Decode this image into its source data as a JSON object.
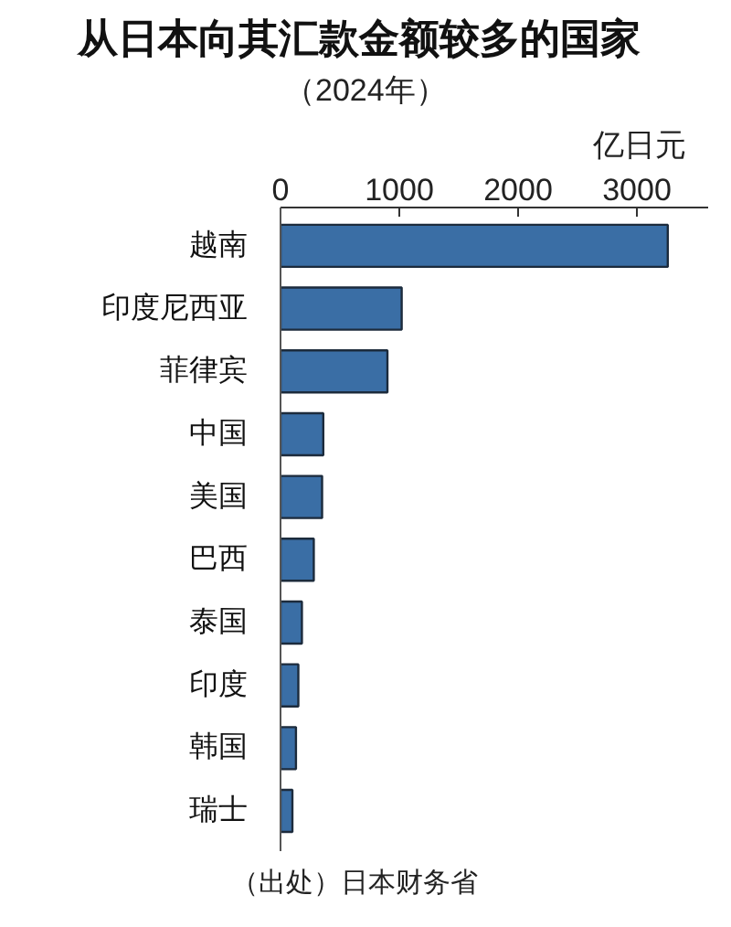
{
  "chart_data": {
    "type": "bar",
    "orientation": "horizontal",
    "title": "从日本向其汇款金额较多的国家",
    "subtitle": "（2024年）",
    "xlabel": "亿日元",
    "categories": [
      "越南",
      "印度尼西亚",
      "菲律宾",
      "中国",
      "美国",
      "巴西",
      "泰国",
      "印度",
      "韩国",
      "瑞士"
    ],
    "values": [
      3260,
      1020,
      900,
      360,
      350,
      280,
      180,
      150,
      130,
      100
    ],
    "color": "#3a6ea5",
    "xlim": [
      0,
      3600
    ],
    "xticks": [
      0,
      1000,
      2000,
      3000
    ],
    "grid": false,
    "annotations": [
      "（出处）日本财务省"
    ]
  }
}
